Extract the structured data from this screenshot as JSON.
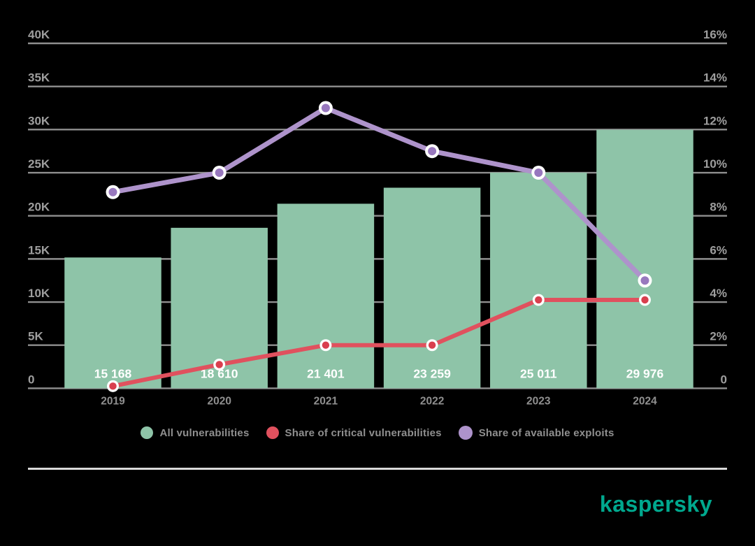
{
  "chart_data": {
    "type": "bar+line combo",
    "categories": [
      "2019",
      "2020",
      "2021",
      "2022",
      "2023",
      "2024"
    ],
    "bar_series": {
      "name": "All vulnerabilities",
      "axis": "left",
      "values": [
        15168,
        18610,
        21401,
        23259,
        25011,
        29976
      ],
      "value_labels": [
        "15 168",
        "18 610",
        "21 401",
        "23 259",
        "25 011",
        "29 976"
      ],
      "color": "#8EC4A8"
    },
    "line_series": [
      {
        "name": "Share of critical vulnerabilities",
        "axis": "right",
        "values_percent": [
          0.1,
          1.1,
          2,
          2,
          4.1,
          4.1
        ],
        "color": "#E0515E",
        "dot_color": "#D93F4E"
      },
      {
        "name": "Share of available exploits",
        "axis": "right",
        "values_percent": [
          9.1,
          10,
          13,
          11,
          10,
          5
        ],
        "color": "#AE93CB",
        "dot_color": "#9878BE"
      }
    ],
    "left_axis": {
      "ticks": [
        "40K",
        "35K",
        "30K",
        "25K",
        "20K",
        "15K",
        "10K",
        "5K",
        "0"
      ],
      "min": 0,
      "max": 40000
    },
    "right_axis": {
      "ticks": [
        "16%",
        "14%",
        "12%",
        "10%",
        "8%",
        "6%",
        "4%",
        "2%",
        "0"
      ],
      "min": 0,
      "max": 16
    },
    "grid": true,
    "legend_position": "bottom"
  },
  "colors": {
    "background": "#000000",
    "grid": "#8F8F8F",
    "axis_text": "#9E9E9E",
    "bar": "#8EC4A8",
    "bar_label": "#FFFFFF",
    "year_label": "#8F8F8F",
    "critical_line": "#E0515E",
    "critical_dot": "#D93F4E",
    "exploits_line": "#AE93CB",
    "exploits_dot": "#9878BE",
    "legend_text": "#8F8F8F",
    "divider": "#D9D9D9",
    "brand": "#00A88E"
  },
  "footer": {
    "brand": "kaspersky"
  }
}
